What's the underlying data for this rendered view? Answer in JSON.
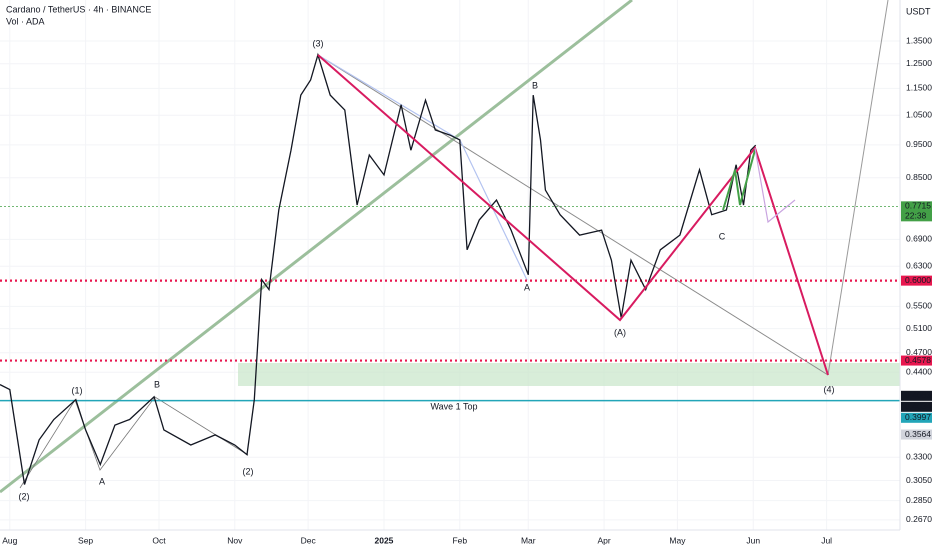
{
  "chart_data": {
    "type": "line",
    "title": "Cardano / TetherUS · 4h · BINANCE",
    "subtitle": "Vol · ADA",
    "y_axis_label": "USDT",
    "log_scale": true,
    "xlim": [
      -4,
      364
    ],
    "ylim": [
      0.258,
      1.551
    ],
    "xticks": [
      {
        "value": 0,
        "label": "Aug"
      },
      {
        "value": 31,
        "label": "Sep"
      },
      {
        "value": 61,
        "label": "Oct"
      },
      {
        "value": 92,
        "label": "Nov"
      },
      {
        "value": 122,
        "label": "Dec"
      },
      {
        "value": 153,
        "label": "2025"
      },
      {
        "value": 184,
        "label": "Feb"
      },
      {
        "value": 212,
        "label": "Mar"
      },
      {
        "value": 243,
        "label": "Apr"
      },
      {
        "value": 273,
        "label": "May"
      },
      {
        "value": 304,
        "label": "Jun"
      },
      {
        "value": 334,
        "label": "Jul"
      }
    ],
    "yticks": [
      {
        "value": 1.35,
        "label": "1.3500"
      },
      {
        "value": 1.25,
        "label": "1.2500"
      },
      {
        "value": 1.15,
        "label": "1.1500"
      },
      {
        "value": 1.05,
        "label": "1.0500"
      },
      {
        "value": 0.95,
        "label": "0.9500"
      },
      {
        "value": 0.85,
        "label": "0.8500"
      },
      {
        "value": 0.69,
        "label": "0.6900"
      },
      {
        "value": 0.63,
        "label": "0.6300"
      },
      {
        "value": 0.55,
        "label": "0.5500"
      },
      {
        "value": 0.51,
        "label": "0.5100"
      },
      {
        "value": 0.47,
        "label": "0.4700"
      },
      {
        "value": 0.44,
        "label": "0.4400"
      },
      {
        "value": 0.33,
        "label": "0.3300"
      },
      {
        "value": 0.305,
        "label": "0.3050"
      },
      {
        "value": 0.285,
        "label": "0.2850"
      },
      {
        "value": 0.267,
        "label": "0.2670"
      }
    ],
    "series": [
      {
        "name": "ADAUSDT",
        "color": "#131722",
        "x": [
          -4,
          0,
          6,
          12,
          18,
          27,
          31,
          37,
          43,
          49,
          59,
          63,
          74,
          84,
          92,
          97,
          100,
          103,
          106,
          110,
          115,
          119,
          123,
          126,
          131,
          137,
          142,
          147,
          153,
          160,
          164,
          170,
          174,
          180,
          184,
          187,
          192,
          199,
          205,
          212,
          214,
          217,
          219,
          225,
          233,
          242,
          246,
          250,
          254,
          260,
          266,
          274,
          282,
          287,
          293,
          297,
          300,
          303,
          305
        ],
        "values": [
          0.422,
          0.415,
          0.301,
          0.35,
          0.375,
          0.401,
          0.362,
          0.322,
          0.368,
          0.375,
          0.405,
          0.362,
          0.344,
          0.356,
          0.344,
          0.333,
          0.401,
          0.602,
          0.582,
          0.762,
          0.933,
          1.124,
          1.183,
          1.288,
          1.124,
          1.069,
          0.775,
          0.918,
          0.858,
          1.088,
          0.933,
          1.105,
          0.999,
          0.982,
          0.966,
          0.666,
          0.737,
          0.788,
          0.712,
          0.612,
          1.124,
          0.966,
          0.815,
          0.75,
          0.7,
          0.712,
          0.643,
          0.529,
          0.643,
          0.582,
          0.666,
          0.7,
          0.873,
          0.75,
          0.762,
          0.888,
          0.775,
          0.933,
          0.949
        ]
      }
    ],
    "levels": [
      {
        "value": 0.7715,
        "label": "0.7715",
        "color": "#43a047",
        "line": "dotted",
        "sub": "22:38"
      },
      {
        "value": 0.6,
        "label": "0.6000",
        "color": "#e8174f",
        "line": "dotted"
      },
      {
        "value": 0.4578,
        "label": "0.4578",
        "color": "#e8174f",
        "line": "dotted"
      },
      {
        "value": 0.4063,
        "label": "0.4063",
        "color": "#131722",
        "line": "none"
      },
      {
        "value": 0.4034,
        "label": "0.4034",
        "color": "#131722",
        "line": "none"
      },
      {
        "value": 0.3997,
        "label": "0.3997",
        "color": "#22a5b8",
        "line": "solid"
      },
      {
        "value": 0.3564,
        "label": "0.3564",
        "color": "#d1d4dc",
        "line": "none"
      }
    ],
    "annotations": [
      "(1)",
      "(2)",
      "(3)",
      "(A)",
      "(4)",
      "A",
      "B",
      "A",
      "B",
      "C",
      "Wave 1 Top",
      "(2)"
    ]
  }
}
